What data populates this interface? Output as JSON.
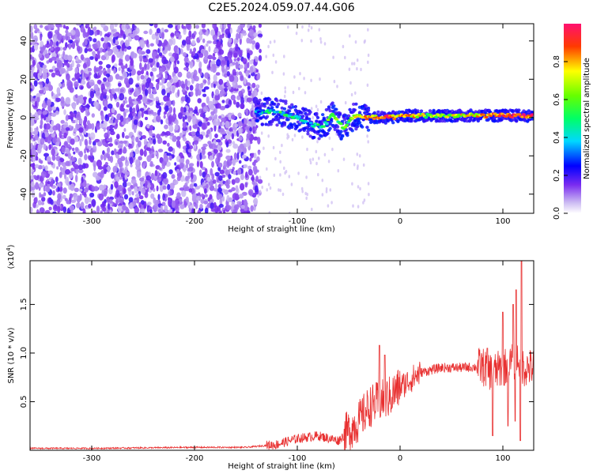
{
  "title": "C2E5.2024.059.07.44.G06",
  "chart_data": [
    {
      "type": "heatmap",
      "name": "spectrogram",
      "xlabel": "Height of straight line (km)",
      "ylabel": "Frequency (Hz)",
      "xlim": [
        -360,
        130
      ],
      "ylim": [
        -50,
        49
      ],
      "xticks": [
        -300,
        -200,
        -100,
        0,
        100
      ],
      "yticks": [
        -40,
        -20,
        0,
        20,
        40
      ],
      "colorbar": {
        "label": "Normalized spectral amplitude",
        "ticks": [
          "0.0",
          "0.2",
          "0.4",
          "0.6",
          "0.8"
        ],
        "tick_values": [
          0.0,
          0.2,
          0.4,
          0.6,
          0.8
        ],
        "range": [
          0,
          1
        ]
      },
      "noise_region_x": [
        -360,
        -140
      ],
      "signal_track": {
        "x": [
          -140,
          -120,
          -100,
          -90,
          -75,
          -65,
          -55,
          -45,
          -30,
          -10,
          10,
          30,
          60,
          90,
          110,
          120,
          130
        ],
        "y": [
          3,
          3,
          0,
          -3,
          -5,
          2,
          -6,
          1,
          0,
          0,
          1,
          1,
          1,
          1,
          1,
          1,
          1
        ],
        "amplitude": [
          0.3,
          0.45,
          0.4,
          0.35,
          0.45,
          0.6,
          0.5,
          0.7,
          0.8,
          0.85,
          0.75,
          0.6,
          0.7,
          0.85,
          0.9,
          0.9,
          0.9
        ]
      }
    },
    {
      "type": "line",
      "name": "snr",
      "xlabel": "Height of straight line (km)",
      "ylabel": "SNR (10 * v/v)",
      "y_multiplier": "(x10",
      "y_multiplier_exp": "4",
      "y_multiplier_close": ")",
      "xlim": [
        -360,
        130
      ],
      "ylim": [
        0,
        1.95
      ],
      "xticks": [
        -300,
        -200,
        -100,
        0,
        100
      ],
      "yticks": [
        0.5,
        1.0,
        1.5
      ],
      "ytick_labels": [
        "0.5",
        "1.0",
        "1.5"
      ],
      "color": "#e83030",
      "x": [
        -360,
        -300,
        -200,
        -150,
        -120,
        -100,
        -80,
        -60,
        -50,
        -40,
        -30,
        -20,
        -10,
        0,
        20,
        40,
        60,
        80,
        90,
        100,
        110,
        115,
        120,
        130
      ],
      "y": [
        0.02,
        0.02,
        0.03,
        0.03,
        0.06,
        0.12,
        0.15,
        0.1,
        0.2,
        0.3,
        0.45,
        0.5,
        0.55,
        0.65,
        0.8,
        0.85,
        0.85,
        0.86,
        0.8,
        0.85,
        0.9,
        0.95,
        0.85,
        0.85
      ],
      "spikes": [
        {
          "x": -20,
          "y": 1.08
        },
        {
          "x": -15,
          "y": 0.98
        },
        {
          "x": 85,
          "y": 1.05
        },
        {
          "x": 100,
          "y": 1.42
        },
        {
          "x": 110,
          "y": 1.5
        },
        {
          "x": 118,
          "y": 1.95
        },
        {
          "x": 113,
          "y": 1.65
        }
      ],
      "dips": [
        {
          "x": 90,
          "y": 0.15
        },
        {
          "x": 105,
          "y": 0.25
        },
        {
          "x": 112,
          "y": 0.3
        },
        {
          "x": 117,
          "y": 0.1
        }
      ]
    }
  ]
}
